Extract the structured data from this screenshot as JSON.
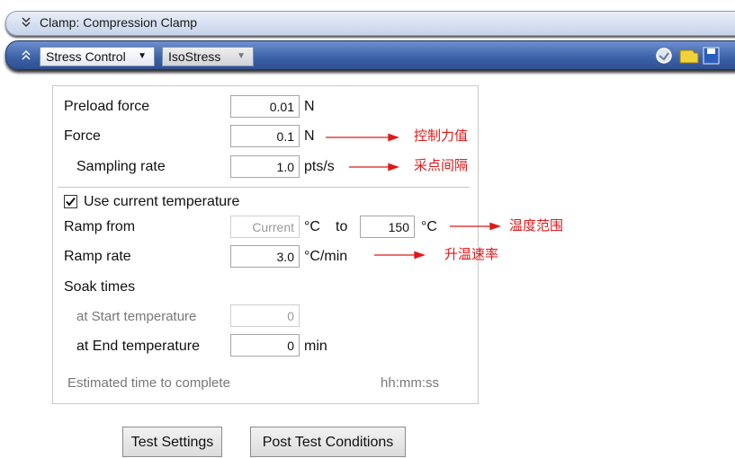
{
  "header": {
    "title": "Clamp: Compression Clamp"
  },
  "toolbar": {
    "mode": "Stress Control",
    "procedure": "IsoStress"
  },
  "form": {
    "preload": {
      "label": "Preload force",
      "value": "0.01",
      "unit": "N"
    },
    "force": {
      "label": "Force",
      "value": "0.1",
      "unit": "N",
      "note": "控制力值"
    },
    "sampling": {
      "label": "Sampling rate",
      "value": "1.0",
      "unit": "pts/s",
      "note": "采点间隔"
    },
    "use_current": {
      "label": "Use current temperature",
      "checked": true
    },
    "ramp_from": {
      "label": "Ramp from",
      "value": "Current",
      "unit": "°C",
      "joiner": "to",
      "to_value": "150",
      "to_unit": "°C",
      "note": "温度范围"
    },
    "ramp_rate": {
      "label": "Ramp rate",
      "value": "3.0",
      "unit": "°C/min",
      "note": "升温速率"
    },
    "soak": {
      "label": "Soak times"
    },
    "soak_start": {
      "label": "at Start temperature",
      "value": "0"
    },
    "soak_end": {
      "label": "at End temperature",
      "value": "0",
      "unit": "min"
    },
    "estimate": {
      "label": "Estimated time to complete",
      "value": "hh:mm:ss"
    }
  },
  "buttons": [
    "Test Settings",
    "Post Test Conditions"
  ]
}
